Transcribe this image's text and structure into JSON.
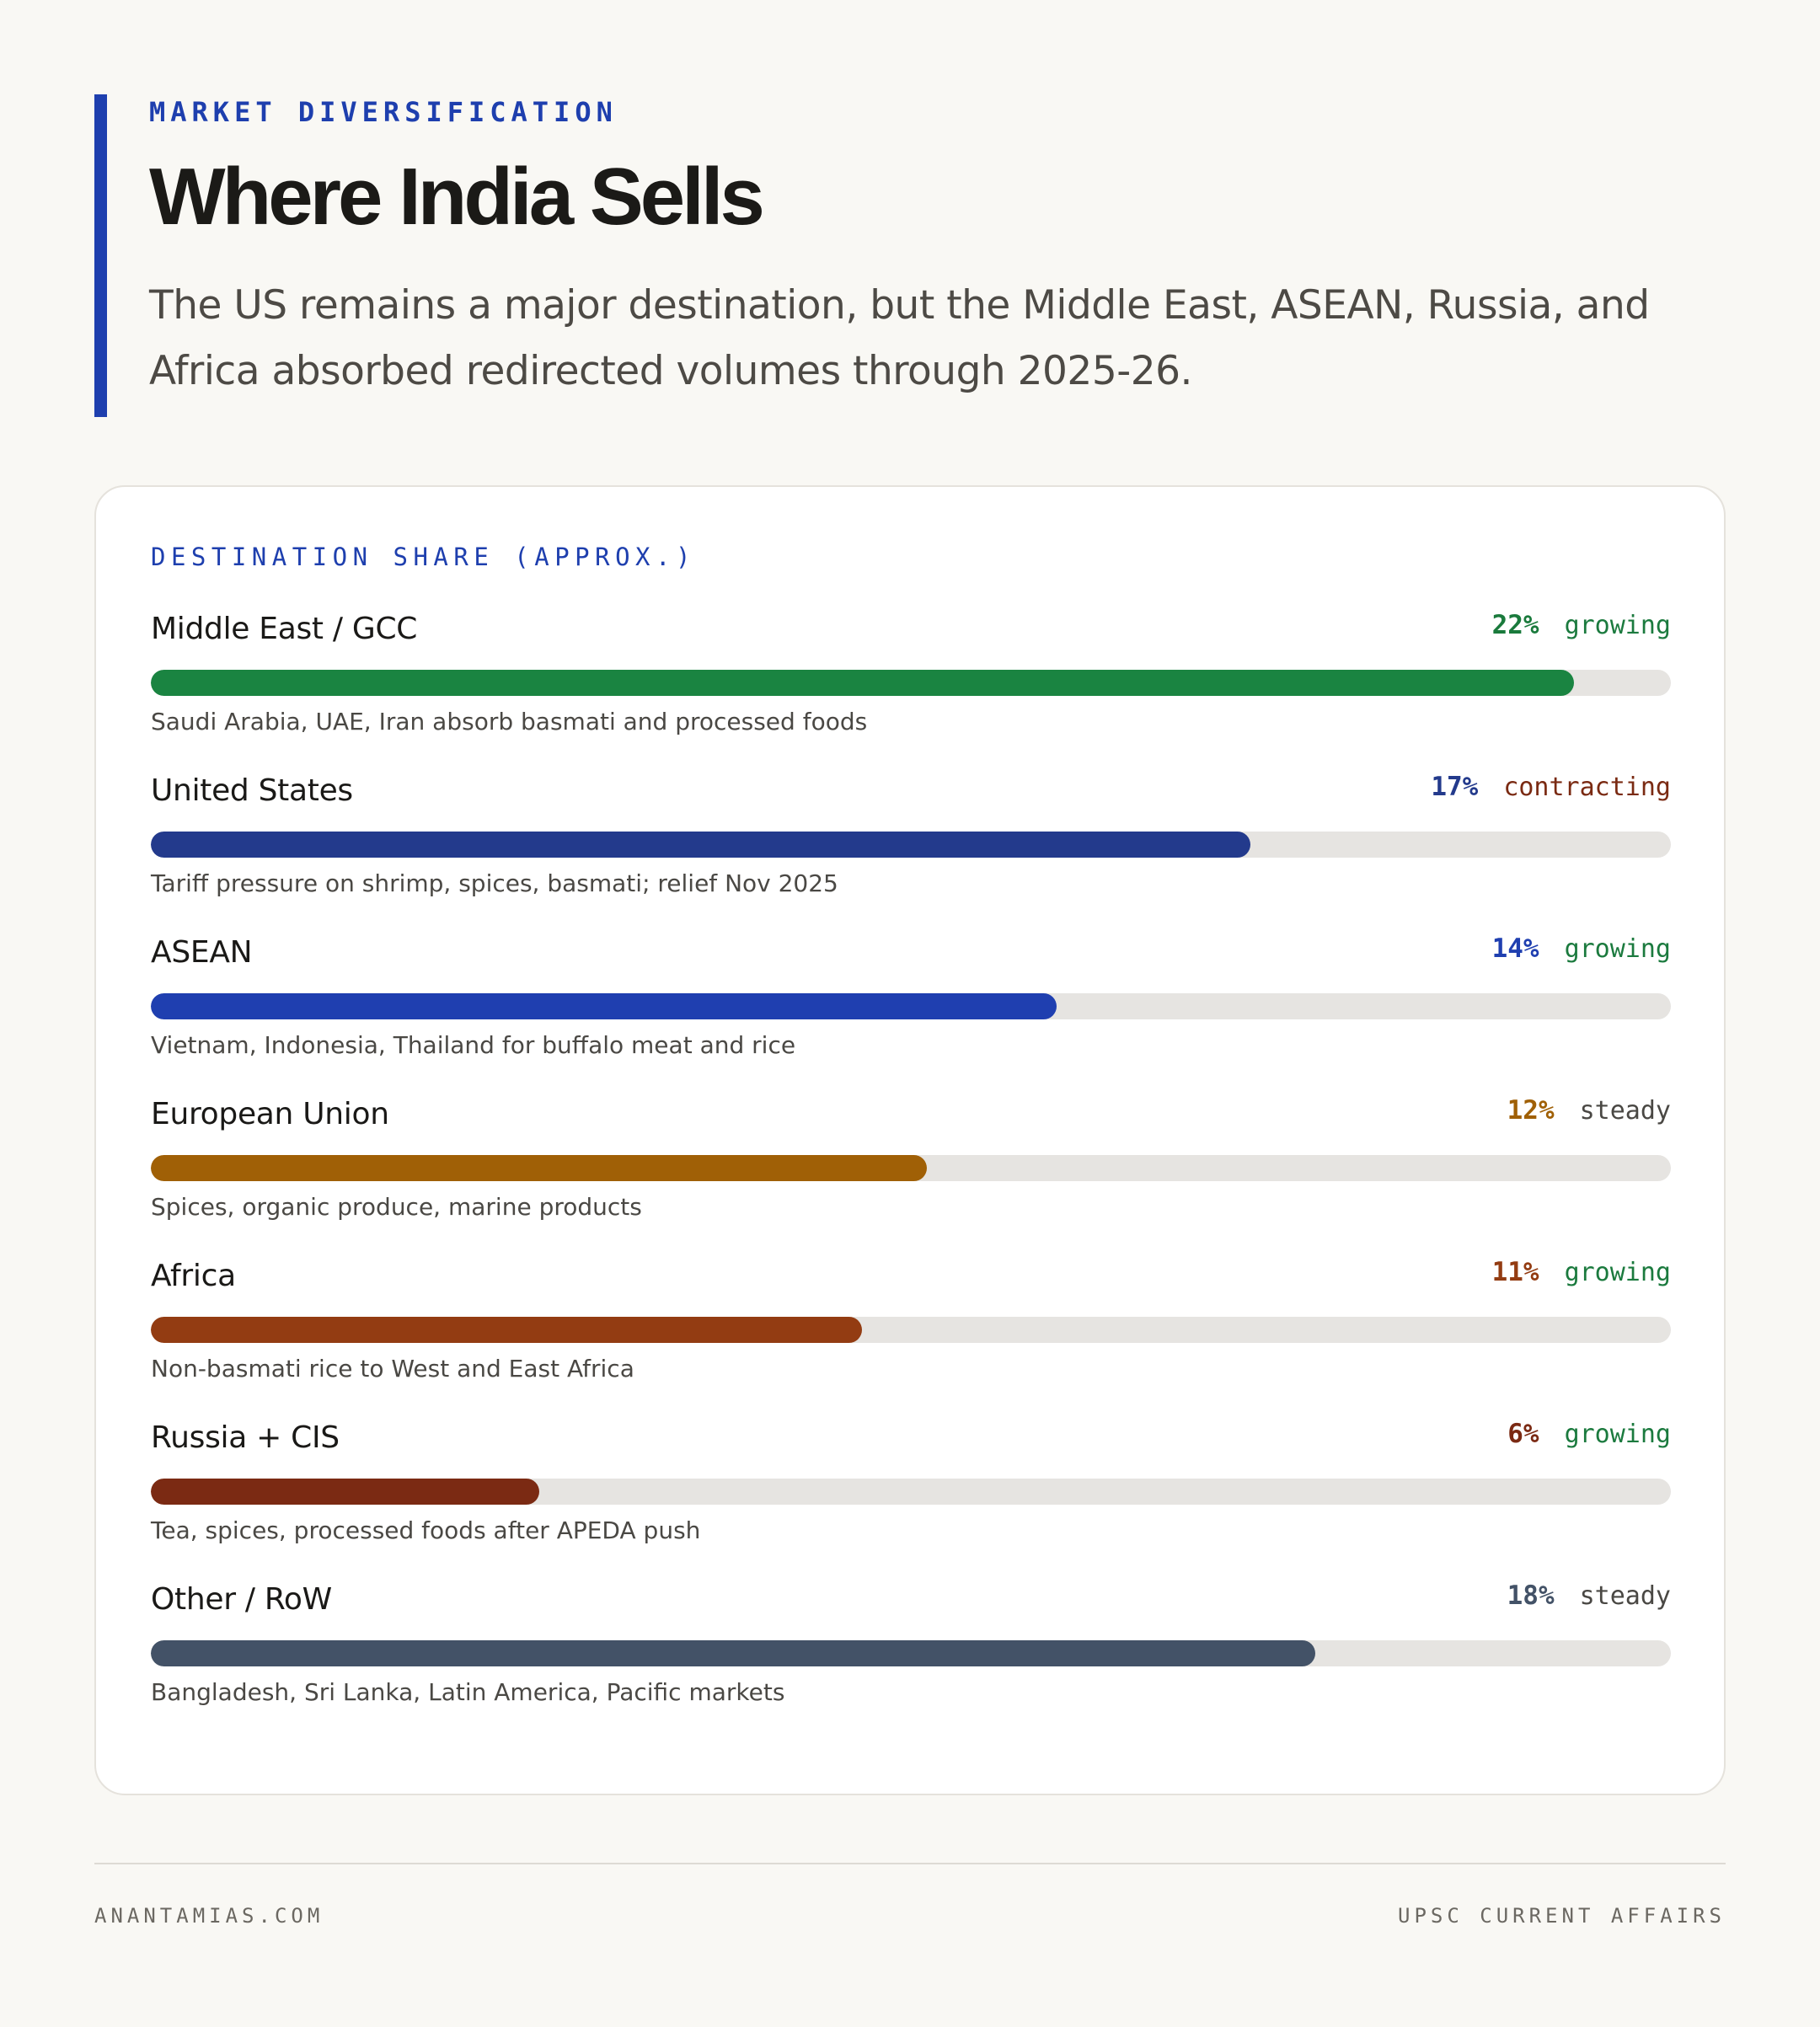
{
  "header": {
    "eyebrow": "MARKET DIVERSIFICATION",
    "title": "Where India Sells",
    "subtitle": "The US remains a major destination, but the Middle East, ASEAN, Russia, and Africa absorbed redirected volumes through 2025-26."
  },
  "card": {
    "label": "DESTINATION SHARE (APPROX.)"
  },
  "colors": {
    "accent": "#1e3fae",
    "growing": "#1b7a3e",
    "contracting": "#7a2a12",
    "steady": "#4a4844",
    "track": "#e6e4e1"
  },
  "chart_data": {
    "type": "bar",
    "orientation": "horizontal",
    "title": "DESTINATION SHARE (APPROX.)",
    "unit": "%",
    "xlim": [
      0,
      23.5
    ],
    "categories": [
      "Middle East / GCC",
      "United States",
      "ASEAN",
      "European Union",
      "Africa",
      "Russia + CIS",
      "Other / RoW"
    ],
    "values": [
      22,
      17,
      14,
      12,
      11,
      6,
      18
    ],
    "rows": [
      {
        "name": "Middle East / GCC",
        "value": 22,
        "pct_label": "22%",
        "trend": "growing",
        "note": "Saudi Arabia, UAE, Iran absorb basmati and processed foods",
        "color": "#1a8441",
        "pct_color": "#1a7a3c",
        "trend_color": "#1b7a3e"
      },
      {
        "name": "United States",
        "value": 17,
        "pct_label": "17%",
        "trend": "contracting",
        "note": "Tariff pressure on shrimp, spices, basmati; relief Nov 2025",
        "color": "#233a8c",
        "pct_color": "#233a8c",
        "trend_color": "#7a2a12"
      },
      {
        "name": "ASEAN",
        "value": 14,
        "pct_label": "14%",
        "trend": "growing",
        "note": "Vietnam, Indonesia, Thailand for buffalo meat and rice",
        "color": "#1f3fb0",
        "pct_color": "#1f3fb0",
        "trend_color": "#1b7a3e"
      },
      {
        "name": "European Union",
        "value": 12,
        "pct_label": "12%",
        "trend": "steady",
        "note": "Spices, organic produce, marine products",
        "color": "#a06006",
        "pct_color": "#a06006",
        "trend_color": "#4a4844"
      },
      {
        "name": "Africa",
        "value": 11,
        "pct_label": "11%",
        "trend": "growing",
        "note": "Non-basmati rice to West and East Africa",
        "color": "#933c12",
        "pct_color": "#933c12",
        "trend_color": "#1b7a3e"
      },
      {
        "name": "Russia + CIS",
        "value": 6,
        "pct_label": "6%",
        "trend": "growing",
        "note": "Tea, spices, processed foods after APEDA push",
        "color": "#7b2a13",
        "pct_color": "#7b2a13",
        "trend_color": "#1b7a3e"
      },
      {
        "name": "Other / RoW",
        "value": 18,
        "pct_label": "18%",
        "trend": "steady",
        "note": "Bangladesh, Sri Lanka, Latin America, Pacific markets",
        "color": "#435267",
        "pct_color": "#435267",
        "trend_color": "#4a4844"
      }
    ]
  },
  "footer": {
    "left": "ANANTAMIAS.COM",
    "right": "UPSC CURRENT AFFAIRS"
  }
}
